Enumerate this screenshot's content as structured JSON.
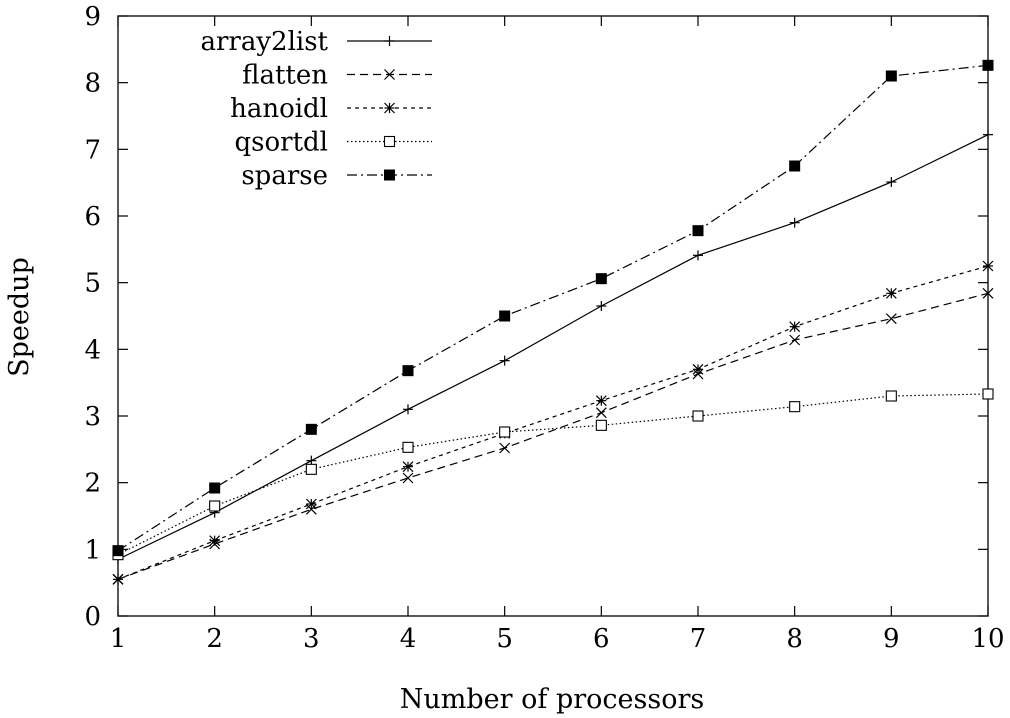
{
  "chart_data": {
    "type": "line",
    "title": "",
    "xlabel": "Number of processors",
    "ylabel": "Speedup",
    "xlim": [
      1,
      10
    ],
    "ylim": [
      0,
      9
    ],
    "x_ticks": [
      "1",
      "2",
      "3",
      "4",
      "5",
      "6",
      "7",
      "8",
      "9",
      "10"
    ],
    "y_ticks": [
      "0",
      "1",
      "2",
      "3",
      "4",
      "5",
      "6",
      "7",
      "8",
      "9"
    ],
    "grid": false,
    "legend_position": "top-left",
    "x": [
      1,
      2,
      3,
      4,
      5,
      6,
      7,
      8,
      9,
      10
    ],
    "series": [
      {
        "name": "array2list",
        "marker": "plus",
        "dash": "solid",
        "values": [
          0.85,
          1.55,
          2.33,
          3.1,
          3.83,
          4.65,
          5.41,
          5.9,
          6.51,
          7.22
        ]
      },
      {
        "name": "flatten",
        "marker": "cross",
        "dash": "dashed",
        "values": [
          0.55,
          1.08,
          1.6,
          2.07,
          2.52,
          3.05,
          3.63,
          4.14,
          4.46,
          4.84
        ]
      },
      {
        "name": "hanoidl",
        "marker": "star",
        "dash": "dotted",
        "values": [
          0.55,
          1.13,
          1.68,
          2.24,
          2.74,
          3.23,
          3.7,
          4.34,
          4.84,
          5.25
        ]
      },
      {
        "name": "qsortdl",
        "marker": "open-square",
        "dash": "fine-dotted",
        "values": [
          0.92,
          1.65,
          2.2,
          2.53,
          2.76,
          2.86,
          3.0,
          3.14,
          3.3,
          3.33
        ]
      },
      {
        "name": "sparse",
        "marker": "filled-square",
        "dash": "dash-dot",
        "values": [
          0.98,
          1.92,
          2.8,
          3.68,
          4.5,
          5.06,
          5.78,
          6.75,
          8.1,
          8.26
        ]
      }
    ]
  }
}
